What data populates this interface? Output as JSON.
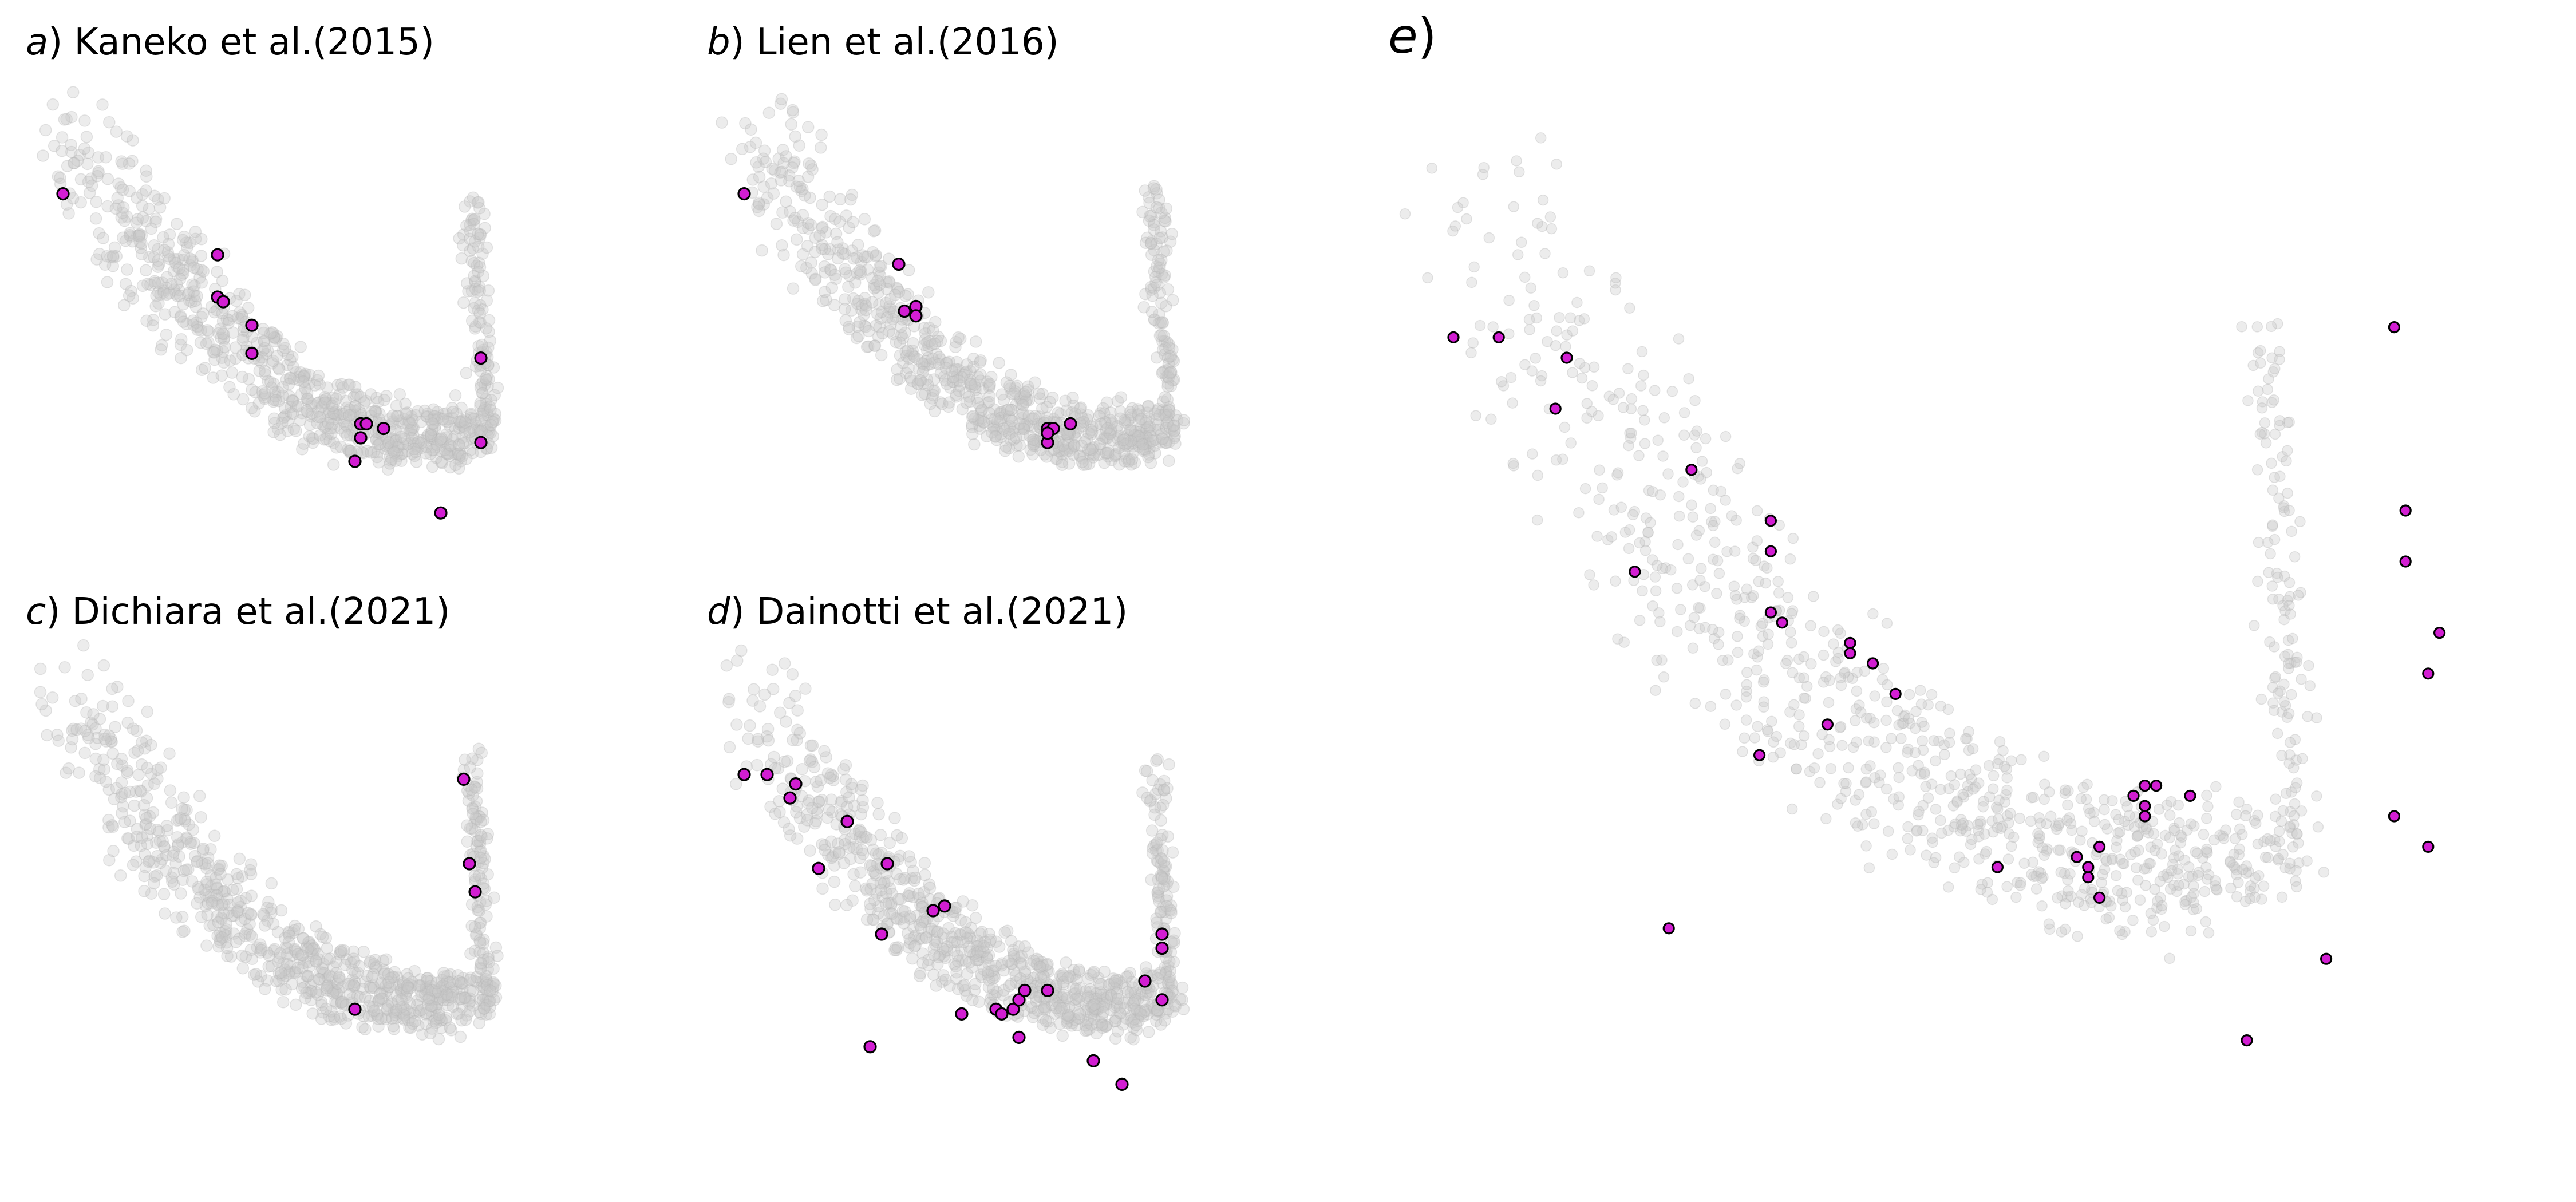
{
  "chart_data": [
    {
      "type": "scatter",
      "panel": "a",
      "title": "Kaneko et al.(2015)",
      "highlight_color": "#d21ed2",
      "background_color": "#c8c8c8",
      "background_points": 900,
      "highlighted": [
        [
          0.05,
          0.77
        ],
        [
          0.32,
          0.64
        ],
        [
          0.32,
          0.55
        ],
        [
          0.33,
          0.54
        ],
        [
          0.38,
          0.49
        ],
        [
          0.38,
          0.43
        ],
        [
          0.57,
          0.28
        ],
        [
          0.58,
          0.28
        ],
        [
          0.61,
          0.27
        ],
        [
          0.57,
          0.25
        ],
        [
          0.56,
          0.2
        ],
        [
          0.71,
          0.09
        ],
        [
          0.78,
          0.42
        ],
        [
          0.78,
          0.24
        ]
      ]
    },
    {
      "type": "scatter",
      "panel": "b",
      "title": "Lien et al.(2016)",
      "highlight_color": "#d21ed2",
      "background_color": "#c8c8c8",
      "background_points": 900,
      "highlighted": [
        [
          0.05,
          0.77
        ],
        [
          0.32,
          0.62
        ],
        [
          0.33,
          0.52
        ],
        [
          0.35,
          0.53
        ],
        [
          0.35,
          0.51
        ],
        [
          0.58,
          0.27
        ],
        [
          0.59,
          0.27
        ],
        [
          0.58,
          0.24
        ],
        [
          0.58,
          0.26
        ],
        [
          0.62,
          0.28
        ]
      ]
    },
    {
      "type": "scatter",
      "panel": "c",
      "title": "Dichiara et al.(2021)",
      "highlight_color": "#d21ed2",
      "background_color": "#c8c8c8",
      "background_points": 900,
      "highlighted": [
        [
          0.75,
          0.73
        ],
        [
          0.76,
          0.55
        ],
        [
          0.77,
          0.49
        ],
        [
          0.56,
          0.24
        ]
      ]
    },
    {
      "type": "scatter",
      "panel": "d",
      "title": "Dainotti et al.(2021)",
      "highlight_color": "#d21ed2",
      "background_color": "#c8c8c8",
      "background_points": 900,
      "highlighted": [
        [
          0.05,
          0.74
        ],
        [
          0.09,
          0.74
        ],
        [
          0.14,
          0.72
        ],
        [
          0.13,
          0.69
        ],
        [
          0.23,
          0.64
        ],
        [
          0.18,
          0.54
        ],
        [
          0.3,
          0.55
        ],
        [
          0.38,
          0.45
        ],
        [
          0.4,
          0.46
        ],
        [
          0.29,
          0.4
        ],
        [
          0.43,
          0.23
        ],
        [
          0.49,
          0.24
        ],
        [
          0.5,
          0.23
        ],
        [
          0.52,
          0.24
        ],
        [
          0.53,
          0.26
        ],
        [
          0.54,
          0.28
        ],
        [
          0.58,
          0.28
        ],
        [
          0.53,
          0.18
        ],
        [
          0.27,
          0.16
        ],
        [
          0.66,
          0.13
        ],
        [
          0.71,
          0.08
        ],
        [
          0.78,
          0.4
        ],
        [
          0.78,
          0.37
        ],
        [
          0.78,
          0.26
        ],
        [
          0.75,
          0.3
        ]
      ]
    },
    {
      "type": "scatter",
      "panel": "e",
      "title": "",
      "highlight_color": "#d21ed2",
      "background_color": "#c8c8c8",
      "background_points": 1000,
      "highlighted": [
        [
          0.05,
          0.77
        ],
        [
          0.09,
          0.77
        ],
        [
          0.15,
          0.75
        ],
        [
          0.14,
          0.7
        ],
        [
          0.26,
          0.64
        ],
        [
          0.33,
          0.59
        ],
        [
          0.33,
          0.56
        ],
        [
          0.21,
          0.54
        ],
        [
          0.33,
          0.5
        ],
        [
          0.34,
          0.49
        ],
        [
          0.4,
          0.47
        ],
        [
          0.4,
          0.46
        ],
        [
          0.42,
          0.45
        ],
        [
          0.44,
          0.42
        ],
        [
          0.38,
          0.39
        ],
        [
          0.32,
          0.36
        ],
        [
          0.24,
          0.19
        ],
        [
          0.53,
          0.25
        ],
        [
          0.6,
          0.26
        ],
        [
          0.61,
          0.25
        ],
        [
          0.61,
          0.24
        ],
        [
          0.62,
          0.27
        ],
        [
          0.62,
          0.22
        ],
        [
          0.66,
          0.3
        ],
        [
          0.66,
          0.31
        ],
        [
          0.65,
          0.32
        ],
        [
          0.66,
          0.33
        ],
        [
          0.67,
          0.33
        ],
        [
          0.7,
          0.32
        ],
        [
          0.82,
          0.16
        ],
        [
          0.75,
          0.08
        ],
        [
          0.88,
          0.78
        ],
        [
          0.89,
          0.6
        ],
        [
          0.89,
          0.55
        ],
        [
          0.92,
          0.48
        ],
        [
          0.91,
          0.44
        ],
        [
          0.88,
          0.3
        ],
        [
          0.91,
          0.27
        ]
      ]
    }
  ],
  "panels": [
    {
      "letter": "a",
      "text": "Kaneko et al.(2015)"
    },
    {
      "letter": "b",
      "text": "Lien et al.(2016)"
    },
    {
      "letter": "c",
      "text": "Dichiara et al.(2021)"
    },
    {
      "letter": "d",
      "text": "Dainotti et al.(2021)"
    },
    {
      "letter": "e",
      "text": ""
    }
  ]
}
